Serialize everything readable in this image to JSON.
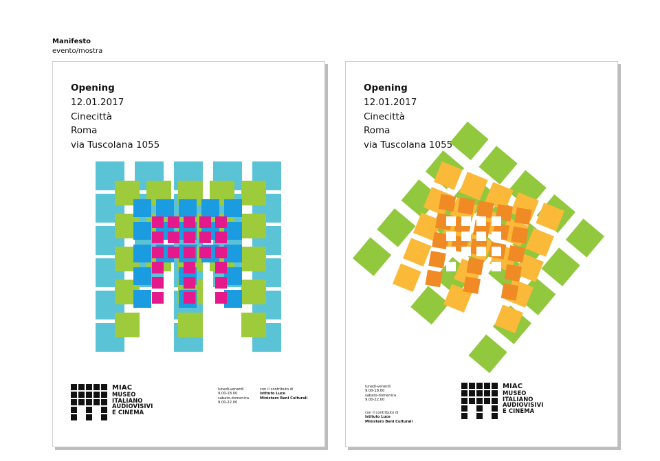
{
  "caption": {
    "title": "Manifesto",
    "subtitle": "evento/mostra"
  },
  "poster_text": {
    "line1": "Opening",
    "line2": "12.01.2017",
    "line3": "Cinecittà",
    "line4": "Roma",
    "line5": "via Tuscolana 1055"
  },
  "logo": {
    "name": "MIAC",
    "line1": "MUSEO",
    "line2": "ITALIANO",
    "line3": "AUDIOVISIVI",
    "line4": "E CINEMA"
  },
  "hours": {
    "weekday_label": "lunedì-venerdì",
    "weekday_time": "9.00-18.00",
    "weekend_label": "sabato-domenica",
    "weekend_time": "9.00-22.00"
  },
  "credits": {
    "intro": "con il contributo di",
    "org1": "Istituto Luce",
    "org2": "Ministero Beni Culturali"
  },
  "colors": {
    "cyan": "#5bc3d6",
    "lime": "#9dcb3c",
    "blue": "#1b9be0",
    "magenta": "#e3198c",
    "orange": "#f08a24",
    "yellow": "#fbb93a",
    "green": "#92c83e"
  }
}
